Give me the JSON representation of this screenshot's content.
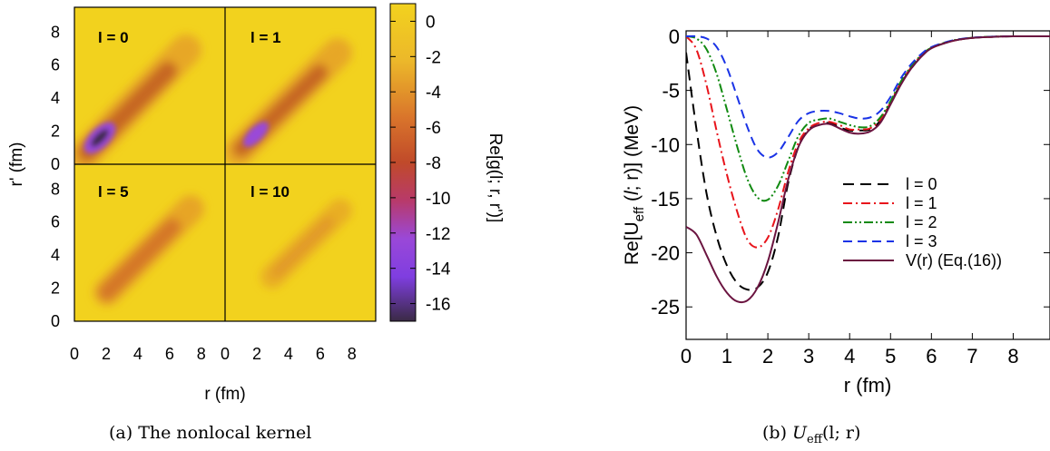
{
  "chart_data": [
    {
      "type": "heatmap",
      "id": "kernel",
      "xlabel": "r (fm)",
      "ylabel": "r' (fm)",
      "colorbar_label": "Re[g(l; r, r')]",
      "x_ticks": [
        "0",
        "2",
        "4",
        "6",
        "8"
      ],
      "y_ticks": [
        "0",
        "2",
        "4",
        "6",
        "8"
      ],
      "xlim": [
        0,
        9.5
      ],
      "ylim": [
        0,
        9.5
      ],
      "colorbar_ticks": [
        "0",
        "-2",
        "-4",
        "-6",
        "-8",
        "-10",
        "-12",
        "-14",
        "-16"
      ],
      "colorbar_range": [
        -17,
        1
      ],
      "panels": [
        {
          "label": "l = 0",
          "peak_value": -16.5,
          "peak_position_fm": [
            1.2,
            1.2
          ]
        },
        {
          "label": "l = 1",
          "peak_value": -14,
          "peak_position_fm": [
            1.6,
            1.6
          ]
        },
        {
          "label": "l = 5",
          "peak_value": -5,
          "peak_position_fm": [
            2.0,
            2.0
          ]
        },
        {
          "label": "l = 10",
          "peak_value": -3,
          "peak_position_fm": [
            4.0,
            4.0
          ]
        }
      ],
      "colors": {
        "background": "#f2d21e",
        "mid": "#d9742b",
        "deep": "#b44516",
        "purple": "#8c3ff0",
        "darkest": "#3a2a44"
      }
    },
    {
      "type": "line",
      "id": "ueff",
      "xlabel": "r (fm)",
      "ylabel": "Re[U_eff (l; r)] (MeV)",
      "xlim": [
        0,
        8.9
      ],
      "ylim": [
        -28,
        0.5
      ],
      "x_ticks": [
        "0",
        "1",
        "2",
        "3",
        "4",
        "5",
        "6",
        "7",
        "8"
      ],
      "y_ticks": [
        "0",
        "-5",
        "-10",
        "-15",
        "-20",
        "-25"
      ],
      "legend_position": "center-right",
      "series": [
        {
          "name": "l = 0",
          "color": "#000000",
          "dash": "12,7",
          "x": [
            0,
            0.25,
            0.5,
            0.75,
            1.0,
            1.25,
            1.5,
            1.75,
            2.0,
            2.25,
            2.5,
            2.75,
            3.0,
            3.25,
            3.5,
            3.75,
            4.0,
            4.25,
            4.5,
            4.75,
            5.0,
            5.25,
            5.5,
            5.75,
            6.0,
            6.5,
            7.0,
            7.5,
            8.0,
            8.9
          ],
          "y": [
            -1.5,
            -8.5,
            -14.5,
            -18.5,
            -21.2,
            -22.8,
            -23.4,
            -23.2,
            -21.8,
            -18.5,
            -13.5,
            -10.2,
            -8.6,
            -8.2,
            -8.0,
            -8.4,
            -8.7,
            -8.7,
            -8.6,
            -7.8,
            -6.2,
            -4.4,
            -3.0,
            -1.9,
            -1.1,
            -0.45,
            -0.15,
            -0.05,
            0,
            0
          ]
        },
        {
          "name": "l = 1",
          "color": "#e8141b",
          "dash": "10,4,2,4",
          "x": [
            0,
            0.25,
            0.5,
            0.75,
            1.0,
            1.25,
            1.5,
            1.75,
            2.0,
            2.25,
            2.5,
            2.75,
            3.0,
            3.25,
            3.5,
            3.75,
            4.0,
            4.25,
            4.5,
            4.75,
            5.0,
            5.25,
            5.5,
            5.75,
            6.0,
            6.5,
            7.0,
            7.5,
            8.0,
            8.9
          ],
          "y": [
            0,
            -1.2,
            -4.5,
            -8.8,
            -12.8,
            -16.2,
            -18.8,
            -19.5,
            -18.6,
            -16.0,
            -12.5,
            -9.8,
            -8.5,
            -8.0,
            -7.9,
            -8.2,
            -8.6,
            -8.6,
            -8.5,
            -7.7,
            -6.1,
            -4.3,
            -2.9,
            -1.8,
            -1.1,
            -0.45,
            -0.15,
            -0.05,
            0,
            0
          ]
        },
        {
          "name": "l = 2",
          "color": "#118a11",
          "dash": "10,3,2,3,2,3",
          "x": [
            0,
            0.25,
            0.5,
            0.75,
            1.0,
            1.25,
            1.5,
            1.75,
            2.0,
            2.25,
            2.5,
            2.75,
            3.0,
            3.25,
            3.5,
            3.75,
            4.0,
            4.25,
            4.5,
            4.75,
            5.0,
            5.25,
            5.5,
            5.75,
            6.0,
            6.5,
            7.0,
            7.5,
            8.0,
            8.9
          ],
          "y": [
            0,
            -0.2,
            -1.2,
            -3.5,
            -6.8,
            -10.2,
            -13.2,
            -14.9,
            -15.1,
            -13.8,
            -11.5,
            -9.2,
            -8.0,
            -7.7,
            -7.6,
            -7.9,
            -8.2,
            -8.4,
            -8.3,
            -7.5,
            -6.0,
            -4.2,
            -2.8,
            -1.75,
            -1.05,
            -0.4,
            -0.14,
            -0.04,
            0,
            0
          ]
        },
        {
          "name": "l = 3",
          "color": "#1a33e6",
          "dash": "10,6",
          "x": [
            0,
            0.25,
            0.5,
            0.75,
            1.0,
            1.25,
            1.5,
            1.75,
            2.0,
            2.25,
            2.5,
            2.75,
            3.0,
            3.25,
            3.5,
            3.75,
            4.0,
            4.25,
            4.5,
            4.75,
            5.0,
            5.25,
            5.5,
            5.75,
            6.0,
            6.5,
            7.0,
            7.5,
            8.0,
            8.9
          ],
          "y": [
            0,
            0,
            -0.2,
            -1.0,
            -2.9,
            -5.6,
            -8.4,
            -10.5,
            -11.2,
            -10.7,
            -9.3,
            -7.8,
            -7.1,
            -6.9,
            -6.9,
            -7.1,
            -7.4,
            -7.6,
            -7.5,
            -6.9,
            -5.6,
            -3.9,
            -2.6,
            -1.65,
            -1.0,
            -0.4,
            -0.13,
            -0.04,
            0,
            0
          ]
        },
        {
          "name": "V(r) (Eq.(16))",
          "color": "#6b1440",
          "dash": "",
          "x": [
            0,
            0.25,
            0.5,
            0.75,
            1.0,
            1.25,
            1.5,
            1.75,
            2.0,
            2.25,
            2.5,
            2.75,
            3.0,
            3.25,
            3.5,
            3.75,
            4.0,
            4.25,
            4.5,
            4.75,
            5.0,
            5.25,
            5.5,
            5.75,
            6.0,
            6.5,
            7.0,
            7.5,
            8.0,
            8.9
          ],
          "y": [
            -17.6,
            -18.3,
            -20.2,
            -22.2,
            -23.7,
            -24.5,
            -24.4,
            -23.2,
            -20.8,
            -17.2,
            -13.2,
            -10.2,
            -8.7,
            -8.2,
            -8.1,
            -8.5,
            -8.9,
            -9.0,
            -8.8,
            -8.0,
            -6.3,
            -4.5,
            -3.0,
            -1.9,
            -1.1,
            -0.45,
            -0.15,
            -0.05,
            0,
            0
          ]
        }
      ]
    }
  ],
  "captions": {
    "a": "(a)  The nonlocal kernel",
    "b_prefix": "(b)  ",
    "b_main": "U",
    "b_sub": "eff",
    "b_suffix": "(l; r)"
  }
}
